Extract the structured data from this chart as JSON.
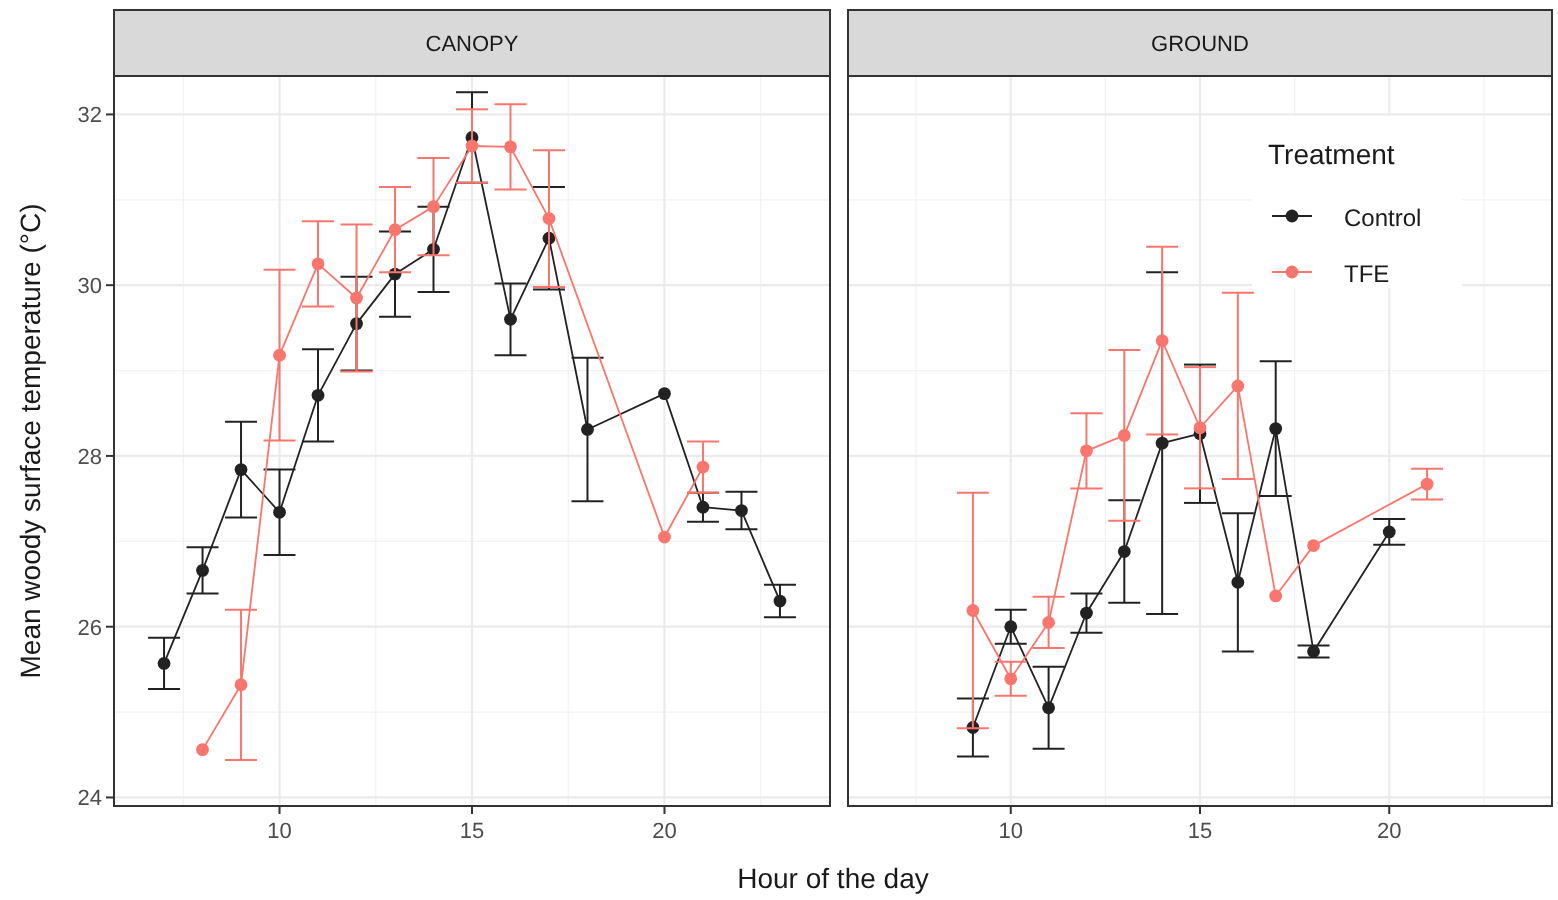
{
  "chart_data": [
    {
      "type": "line",
      "title": "CANOPY",
      "xlabel": "Hour of the day",
      "ylabel": "Mean woody surface temperature (°C)",
      "xlim": [
        5.7,
        24.3
      ],
      "xticks": [
        10,
        15,
        20
      ],
      "ylim": [
        23.9,
        32.45
      ],
      "yticks": [
        24,
        26,
        28,
        30,
        32
      ],
      "grid": true,
      "marker": "circle",
      "line_style": "solid",
      "series": [
        {
          "color": "#222222",
          "x": [
            7,
            8,
            9,
            10,
            11,
            12,
            13,
            14,
            15,
            16,
            17,
            18,
            20,
            21,
            22,
            23
          ],
          "values": [
            25.57,
            26.66,
            27.84,
            27.34,
            28.71,
            29.55,
            30.13,
            30.42,
            31.73,
            29.6,
            30.55,
            28.31,
            28.73,
            27.4,
            27.36,
            26.3
          ],
          "errors": [
            0.3,
            0.27,
            0.56,
            0.5,
            0.54,
            0.55,
            0.5,
            0.5,
            0.53,
            0.42,
            0.6,
            0.84,
            null,
            0.17,
            0.22,
            0.19
          ]
        },
        {
          "color": "#f8766d",
          "x": [
            8,
            9,
            10,
            11,
            12,
            13,
            14,
            15,
            16,
            17,
            20,
            21
          ],
          "values": [
            24.56,
            25.32,
            29.18,
            30.25,
            29.85,
            30.65,
            30.92,
            31.63,
            31.62,
            30.78,
            27.05,
            27.87
          ],
          "errors": [
            null,
            0.88,
            1.0,
            0.5,
            0.86,
            0.5,
            0.57,
            0.43,
            0.5,
            0.8,
            null,
            0.3
          ]
        }
      ]
    },
    {
      "type": "line",
      "title": "GROUND",
      "legend_title": "Treatment",
      "legend": "top right",
      "tick_labels": "x",
      "xlim": [
        5.7,
        24.3
      ],
      "xticks": [
        10,
        15,
        20
      ],
      "ylim": [
        23.9,
        32.45
      ],
      "yticks": [
        24,
        26,
        28,
        30,
        32
      ],
      "grid": true,
      "marker": "circle",
      "line_style": "solid",
      "series": [
        {
          "name": "Control",
          "color": "#222222",
          "x": [
            9,
            10,
            11,
            12,
            13,
            14,
            15,
            16,
            17,
            18,
            20
          ],
          "values": [
            24.82,
            26.0,
            25.05,
            26.16,
            26.88,
            28.15,
            28.26,
            26.52,
            28.32,
            25.71,
            27.11
          ],
          "errors": [
            0.34,
            0.2,
            0.48,
            0.23,
            0.6,
            2.0,
            0.81,
            0.81,
            0.79,
            0.07,
            0.15
          ]
        },
        {
          "name": "TFE",
          "color": "#f8766d",
          "x": [
            9,
            10,
            11,
            12,
            13,
            14,
            15,
            16,
            17,
            18,
            21
          ],
          "values": [
            26.19,
            25.39,
            26.05,
            28.06,
            28.24,
            29.35,
            28.33,
            28.82,
            26.36,
            26.95,
            27.67
          ],
          "errors": [
            1.38,
            0.2,
            0.3,
            0.44,
            1.0,
            1.1,
            0.71,
            1.09,
            null,
            null,
            0.18
          ]
        }
      ]
    }
  ]
}
